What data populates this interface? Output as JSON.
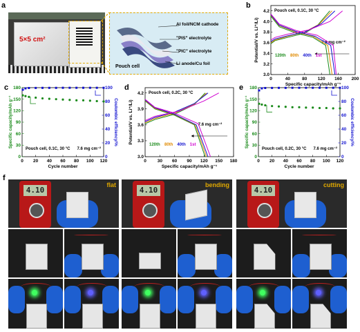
{
  "colors": {
    "c120": "#1a8a1a",
    "c80": "#e08a00",
    "c40": "#1010d0",
    "c1": "#d000d0",
    "capacity": "#1a8a1a",
    "ce": "#1010d0",
    "yellow": "#e0a800",
    "meter": "#b81818",
    "glove": "#1e5fd0"
  },
  "panel_a": {
    "label": "a",
    "area_text": "5×5 cm²",
    "layers": [
      "Al foil/NCM cathode",
      "\"PIS\" electrolyte",
      "\"PIC\" electrolyte",
      "Li anode/Cu foil"
    ],
    "caption": "Pouch cell"
  },
  "panel_f": {
    "label": "f",
    "states": [
      "flat",
      "bending",
      "cutting"
    ],
    "meter_readings": [
      "4.10",
      "4.10",
      "4.10"
    ]
  },
  "chart_data": [
    {
      "panel": "b",
      "type": "line",
      "annotation": "Pouch cell, 0.1C, 30 °C",
      "loading": "7.6 mg cm⁻²",
      "xlabel": "Specific capacity/mAh g⁻¹",
      "ylabel": "Potential/V vs. Li⁺/Li)",
      "xlim": [
        0,
        200
      ],
      "ylim": [
        3.0,
        4.3
      ],
      "xticks": [
        0,
        40,
        80,
        120,
        160,
        200
      ],
      "yticks": [
        3.0,
        3.2,
        3.4,
        3.6,
        3.8,
        4.0,
        4.2
      ],
      "legend": [
        "120th",
        "80th",
        "40th",
        "1st"
      ],
      "series": [
        {
          "name": "120th",
          "charge": [
            [
              0,
              3.58
            ],
            [
              10,
              3.64
            ],
            [
              40,
              3.7
            ],
            [
              80,
              3.78
            ],
            [
              110,
              3.92
            ],
            [
              140,
              4.2
            ]
          ],
          "discharge": [
            [
              0,
              4.1
            ],
            [
              20,
              3.9
            ],
            [
              60,
              3.78
            ],
            [
              100,
              3.7
            ],
            [
              130,
              3.55
            ],
            [
              140,
              3.0
            ]
          ]
        },
        {
          "name": "80th",
          "charge": [
            [
              0,
              3.6
            ],
            [
              10,
              3.65
            ],
            [
              40,
              3.72
            ],
            [
              80,
              3.8
            ],
            [
              115,
              3.95
            ],
            [
              145,
              4.2
            ]
          ],
          "discharge": [
            [
              0,
              4.12
            ],
            [
              20,
              3.92
            ],
            [
              60,
              3.8
            ],
            [
              100,
              3.72
            ],
            [
              135,
              3.55
            ],
            [
              145,
              3.0
            ]
          ]
        },
        {
          "name": "40th",
          "charge": [
            [
              0,
              3.62
            ],
            [
              10,
              3.67
            ],
            [
              40,
              3.73
            ],
            [
              80,
              3.8
            ],
            [
              120,
              3.96
            ],
            [
              152,
              4.2
            ]
          ],
          "discharge": [
            [
              0,
              4.13
            ],
            [
              20,
              3.93
            ],
            [
              60,
              3.81
            ],
            [
              105,
              3.72
            ],
            [
              142,
              3.55
            ],
            [
              152,
              3.0
            ]
          ]
        },
        {
          "name": "1st",
          "charge": [
            [
              0,
              3.65
            ],
            [
              10,
              3.7
            ],
            [
              40,
              3.76
            ],
            [
              90,
              3.84
            ],
            [
              140,
              4.0
            ],
            [
              170,
              4.2
            ]
          ],
          "discharge": [
            [
              0,
              4.14
            ],
            [
              20,
              3.95
            ],
            [
              60,
              3.83
            ],
            [
              110,
              3.74
            ],
            [
              148,
              3.55
            ],
            [
              155,
              3.0
            ]
          ]
        }
      ]
    },
    {
      "panel": "c",
      "type": "scatter",
      "annotation": "Pouch cell, 0.1C, 30 °C",
      "loading": "7.6 mg cm⁻²",
      "xlabel": "Cycle number",
      "ylabel": "Specific capacity/mAh g⁻¹",
      "y2label": "Coulombic efficiency/%",
      "xlim": [
        0,
        120
      ],
      "ylim": [
        0,
        180
      ],
      "y2lim": [
        0,
        100
      ],
      "xticks": [
        0,
        20,
        40,
        60,
        80,
        100,
        120
      ],
      "yticks": [
        0,
        30,
        60,
        90,
        120,
        150,
        180
      ],
      "y2ticks": [
        0,
        20,
        40,
        60,
        80,
        100
      ],
      "series": [
        {
          "name": "capacity",
          "x": [
            1,
            5,
            10,
            20,
            30,
            40,
            50,
            60,
            70,
            80,
            90,
            100,
            110,
            120
          ],
          "values": [
            160,
            158,
            156,
            154,
            152,
            151,
            150,
            149,
            148,
            147,
            147,
            146,
            145,
            144
          ]
        },
        {
          "name": "ce",
          "x": [
            1,
            5,
            10,
            20,
            30,
            40,
            50,
            60,
            70,
            80,
            90,
            100,
            110,
            120
          ],
          "values": [
            97,
            99,
            99.5,
            99.6,
            99.7,
            99.7,
            99.7,
            99.8,
            99.8,
            99.8,
            99.8,
            99.8,
            99.8,
            99.8
          ]
        }
      ]
    },
    {
      "panel": "d",
      "type": "line",
      "annotation": "Pouch cell, 0.2C, 30 °C",
      "loading": "7.6 mg cm⁻²",
      "xlabel": "Specific capacity/mAh g⁻¹",
      "ylabel": "Potential/V vs. Li⁺/Li)",
      "xlim": [
        0,
        180
      ],
      "ylim": [
        3.0,
        4.3
      ],
      "xticks": [
        0,
        30,
        60,
        90,
        120,
        150,
        180
      ],
      "yticks": [
        3.0,
        3.3,
        3.6,
        3.9,
        4.2
      ],
      "legend": [
        "120th",
        "80th",
        "40th",
        "1st"
      ],
      "series": [
        {
          "name": "120th",
          "charge": [
            [
              0,
              3.62
            ],
            [
              20,
              3.7
            ],
            [
              60,
              3.8
            ],
            [
              100,
              3.98
            ],
            [
              122,
              4.2
            ]
          ],
          "discharge": [
            [
              0,
              4.05
            ],
            [
              20,
              3.9
            ],
            [
              60,
              3.78
            ],
            [
              100,
              3.6
            ],
            [
              122,
              3.0
            ]
          ]
        },
        {
          "name": "80th",
          "charge": [
            [
              0,
              3.64
            ],
            [
              20,
              3.72
            ],
            [
              60,
              3.82
            ],
            [
              100,
              3.99
            ],
            [
              125,
              4.2
            ]
          ],
          "discharge": [
            [
              0,
              4.06
            ],
            [
              20,
              3.91
            ],
            [
              60,
              3.79
            ],
            [
              102,
              3.6
            ],
            [
              125,
              3.0
            ]
          ]
        },
        {
          "name": "40th",
          "charge": [
            [
              0,
              3.66
            ],
            [
              20,
              3.74
            ],
            [
              60,
              3.84
            ],
            [
              100,
              4.0
            ],
            [
              128,
              4.2
            ]
          ],
          "discharge": [
            [
              0,
              4.07
            ],
            [
              20,
              3.92
            ],
            [
              60,
              3.8
            ],
            [
              104,
              3.6
            ],
            [
              128,
              3.0
            ]
          ]
        },
        {
          "name": "1st",
          "charge": [
            [
              0,
              3.68
            ],
            [
              20,
              3.76
            ],
            [
              70,
              3.86
            ],
            [
              120,
              4.05
            ],
            [
              150,
              4.2
            ]
          ],
          "discharge": [
            [
              0,
              4.08
            ],
            [
              20,
              3.93
            ],
            [
              60,
              3.82
            ],
            [
              108,
              3.62
            ],
            [
              133,
              3.0
            ]
          ]
        }
      ]
    },
    {
      "panel": "e",
      "type": "scatter",
      "annotation": "Pouch cell, 0.2C, 30 °C",
      "loading": "7.6 mg cm⁻²",
      "xlabel": "Cycle number",
      "ylabel": "Specific capacity/mAh g⁻¹",
      "y2label": "Coulombic efficiency/%",
      "xlim": [
        0,
        120
      ],
      "ylim": [
        0,
        180
      ],
      "y2lim": [
        0,
        100
      ],
      "xticks": [
        0,
        20,
        40,
        60,
        80,
        100,
        120
      ],
      "yticks": [
        0,
        30,
        60,
        90,
        120,
        150,
        180
      ],
      "y2ticks": [
        0,
        20,
        40,
        60,
        80,
        100
      ],
      "series": [
        {
          "name": "capacity",
          "x": [
            1,
            5,
            10,
            20,
            30,
            40,
            50,
            60,
            70,
            80,
            90,
            100,
            110,
            120
          ],
          "values": [
            138,
            136,
            134,
            132,
            131,
            130,
            129,
            129,
            128,
            128,
            127,
            127,
            126,
            126
          ]
        },
        {
          "name": "ce",
          "x": [
            1,
            5,
            10,
            20,
            30,
            40,
            50,
            60,
            70,
            80,
            90,
            100,
            110,
            120
          ],
          "values": [
            96,
            99,
            99.5,
            99.6,
            99.7,
            99.7,
            99.8,
            99.8,
            99.8,
            99.8,
            99.8,
            99.8,
            99.8,
            99.8
          ]
        }
      ]
    }
  ]
}
